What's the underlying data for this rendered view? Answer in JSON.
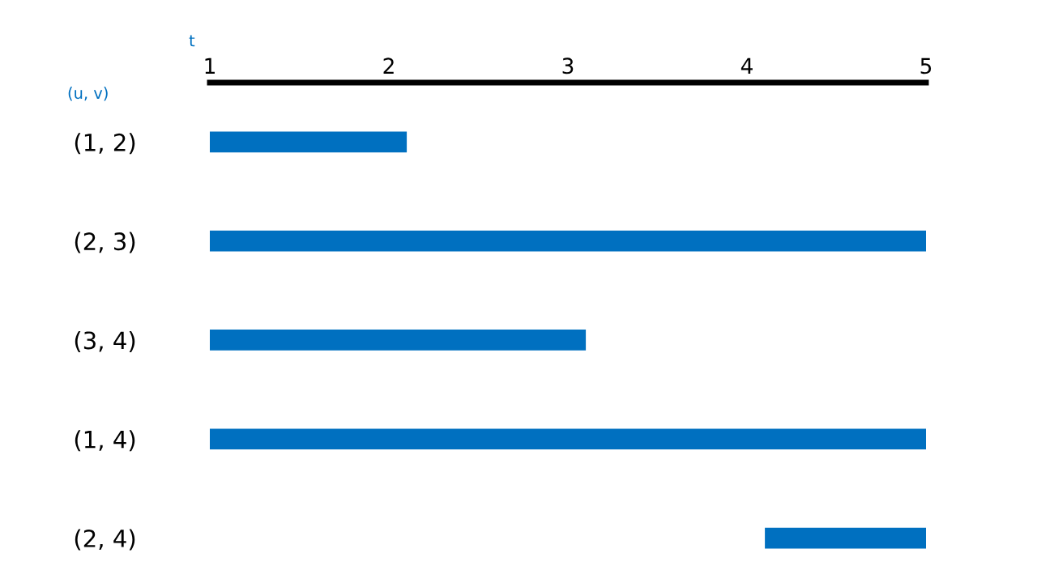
{
  "chart_data": {
    "type": "bar",
    "orientation": "horizontal",
    "xlabel": "t",
    "ylabel": "(u, v)",
    "categories": [
      "(1, 2)",
      "(2, 3)",
      "(3, 4)",
      "(1, 4)",
      "(2, 4)"
    ],
    "base": [
      1,
      1,
      1,
      1,
      4.1
    ],
    "values": [
      1.1,
      4,
      2.1,
      4,
      0.9
    ],
    "color": "#0070c0",
    "xlim": [
      1,
      5
    ],
    "xticks": [
      1,
      2,
      3,
      4,
      5
    ],
    "grid": false,
    "legend": false
  }
}
